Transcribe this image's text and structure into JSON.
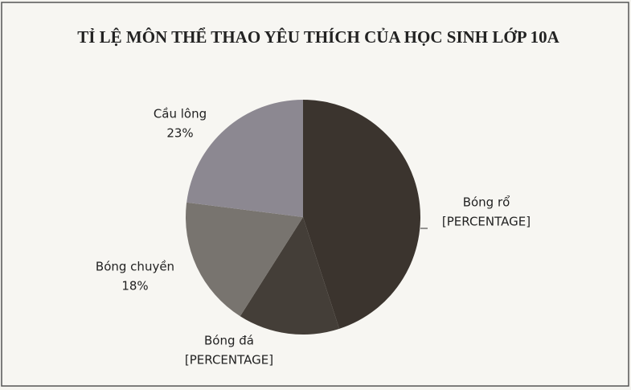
{
  "chart_data": {
    "type": "pie",
    "title": "TỈ LỆ MÔN THỂ THAO YÊU THÍCH CỦA HỌC SINH LỚP 10A",
    "categories": [
      "Bóng rổ",
      "Bóng đá",
      "Bóng chuyền",
      "Cầu lông"
    ],
    "values": [
      45,
      14,
      18,
      23
    ],
    "value_labels": [
      "[PERCENTAGE]",
      "[PERCENTAGE]",
      "18%",
      "23%"
    ],
    "colors": [
      "#3b342e",
      "#443e38",
      "#78746f",
      "#8c8891"
    ]
  }
}
